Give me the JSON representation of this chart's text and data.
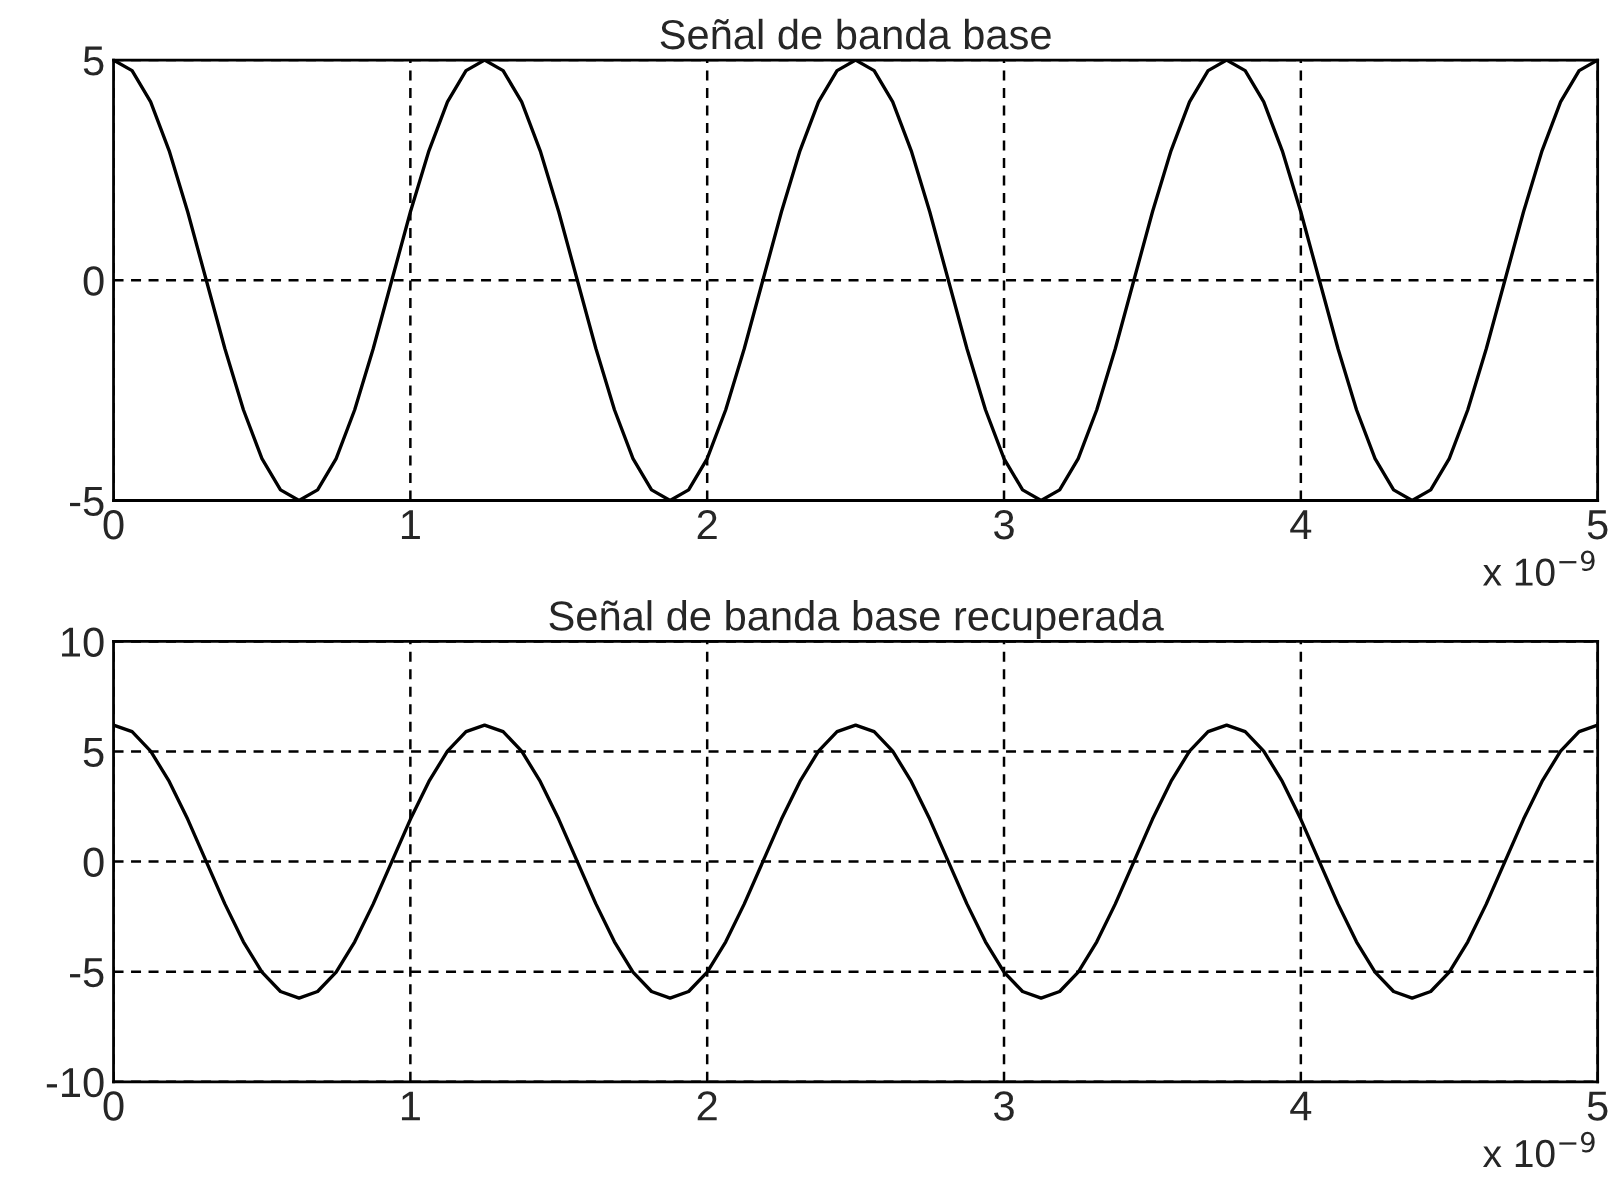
{
  "chart_data": [
    {
      "type": "line",
      "title": "Señal de banda base",
      "xlim": [
        0,
        5
      ],
      "xticks": [
        0,
        1,
        2,
        3,
        4,
        5
      ],
      "ylim": [
        -5,
        5
      ],
      "yticks": [
        -5,
        0,
        5
      ],
      "grid": true,
      "line_style": "solid",
      "annotations": [
        "x 10$^{−9}$"
      ],
      "x": [
        0,
        0.0625,
        0.125,
        0.1875,
        0.25,
        0.3125,
        0.375,
        0.4375,
        0.5,
        0.5625,
        0.625,
        0.6875,
        0.75,
        0.8125,
        0.875,
        0.9375,
        1,
        1.0625,
        1.125,
        1.1875,
        1.25,
        1.3125,
        1.375,
        1.4375,
        1.5,
        1.5625,
        1.625,
        1.6875,
        1.75,
        1.8125,
        1.875,
        1.9375,
        2,
        2.0625,
        2.125,
        2.1875,
        2.25,
        2.3125,
        2.375,
        2.4375,
        2.5,
        2.5625,
        2.625,
        2.6875,
        2.75,
        2.8125,
        2.875,
        2.9375,
        3,
        3.0625,
        3.125,
        3.1875,
        3.25,
        3.3125,
        3.375,
        3.4375,
        3.5,
        3.5625,
        3.625,
        3.6875,
        3.75,
        3.8125,
        3.875,
        3.9375,
        4,
        4.0625,
        4.125,
        4.1875,
        4.25,
        4.3125,
        4.375,
        4.4375,
        4.5,
        4.5625,
        4.625,
        4.6875,
        4.75,
        4.8125,
        4.875,
        4.9375,
        5
      ],
      "series": [
        {
          "color": "#000000",
          "values": [
            5,
            4.76,
            4.05,
            2.94,
            1.55,
            0,
            -1.55,
            -2.94,
            -4.05,
            -4.76,
            -5,
            -4.76,
            -4.05,
            -2.94,
            -1.55,
            0,
            1.55,
            2.94,
            4.05,
            4.76,
            5,
            4.76,
            4.05,
            2.94,
            1.55,
            0,
            -1.55,
            -2.94,
            -4.05,
            -4.76,
            -5,
            -4.76,
            -4.05,
            -2.94,
            -1.55,
            0,
            1.55,
            2.94,
            4.05,
            4.76,
            5,
            4.76,
            4.05,
            2.94,
            1.55,
            0,
            -1.55,
            -2.94,
            -4.05,
            -4.76,
            -5,
            -4.76,
            -4.05,
            -2.94,
            -1.55,
            0,
            1.55,
            2.94,
            4.05,
            4.76,
            5,
            4.76,
            4.05,
            2.94,
            1.55,
            0,
            -1.55,
            -2.94,
            -4.05,
            -4.76,
            -5,
            -4.76,
            -4.05,
            -2.94,
            -1.55,
            0,
            1.55,
            2.94,
            4.05,
            4.76,
            5
          ]
        }
      ]
    },
    {
      "type": "line",
      "title": "Señal de banda base recuperada",
      "xlim": [
        0,
        5
      ],
      "xticks": [
        0,
        1,
        2,
        3,
        4,
        5
      ],
      "ylim": [
        -10,
        10
      ],
      "yticks": [
        -10,
        -5,
        0,
        5,
        10
      ],
      "grid": true,
      "line_style": "solid",
      "annotations": [
        "x 10$^{−9}$"
      ],
      "x": [
        0,
        0.0625,
        0.125,
        0.1875,
        0.25,
        0.3125,
        0.375,
        0.4375,
        0.5,
        0.5625,
        0.625,
        0.6875,
        0.75,
        0.8125,
        0.875,
        0.9375,
        1,
        1.0625,
        1.125,
        1.1875,
        1.25,
        1.3125,
        1.375,
        1.4375,
        1.5,
        1.5625,
        1.625,
        1.6875,
        1.75,
        1.8125,
        1.875,
        1.9375,
        2,
        2.0625,
        2.125,
        2.1875,
        2.25,
        2.3125,
        2.375,
        2.4375,
        2.5,
        2.5625,
        2.625,
        2.6875,
        2.75,
        2.8125,
        2.875,
        2.9375,
        3,
        3.0625,
        3.125,
        3.1875,
        3.25,
        3.3125,
        3.375,
        3.4375,
        3.5,
        3.5625,
        3.625,
        3.6875,
        3.75,
        3.8125,
        3.875,
        3.9375,
        4,
        4.0625,
        4.125,
        4.1875,
        4.25,
        4.3125,
        4.375,
        4.4375,
        4.5,
        4.5625,
        4.625,
        4.6875,
        4.75,
        4.8125,
        4.875,
        4.9375,
        5
      ],
      "series": [
        {
          "color": "#000000",
          "values": [
            6.2,
            5.9,
            5.02,
            3.64,
            1.92,
            0,
            -1.92,
            -3.64,
            -5.02,
            -5.9,
            -6.2,
            -5.9,
            -5.02,
            -3.64,
            -1.92,
            0,
            1.92,
            3.64,
            5.02,
            5.9,
            6.2,
            5.9,
            5.02,
            3.64,
            1.92,
            0,
            -1.92,
            -3.64,
            -5.02,
            -5.9,
            -6.2,
            -5.9,
            -5.02,
            -3.64,
            -1.92,
            0,
            1.92,
            3.64,
            5.02,
            5.9,
            6.2,
            5.9,
            5.02,
            3.64,
            1.92,
            0,
            -1.92,
            -3.64,
            -5.02,
            -5.9,
            -6.2,
            -5.9,
            -5.02,
            -3.64,
            -1.92,
            0,
            1.92,
            3.64,
            5.02,
            5.9,
            6.2,
            5.9,
            5.02,
            3.64,
            1.92,
            0,
            -1.92,
            -3.64,
            -5.02,
            -5.9,
            -6.2,
            -5.9,
            -5.02,
            -3.64,
            -1.92,
            0,
            1.92,
            3.64,
            5.02,
            5.9,
            6.2
          ]
        }
      ]
    }
  ]
}
